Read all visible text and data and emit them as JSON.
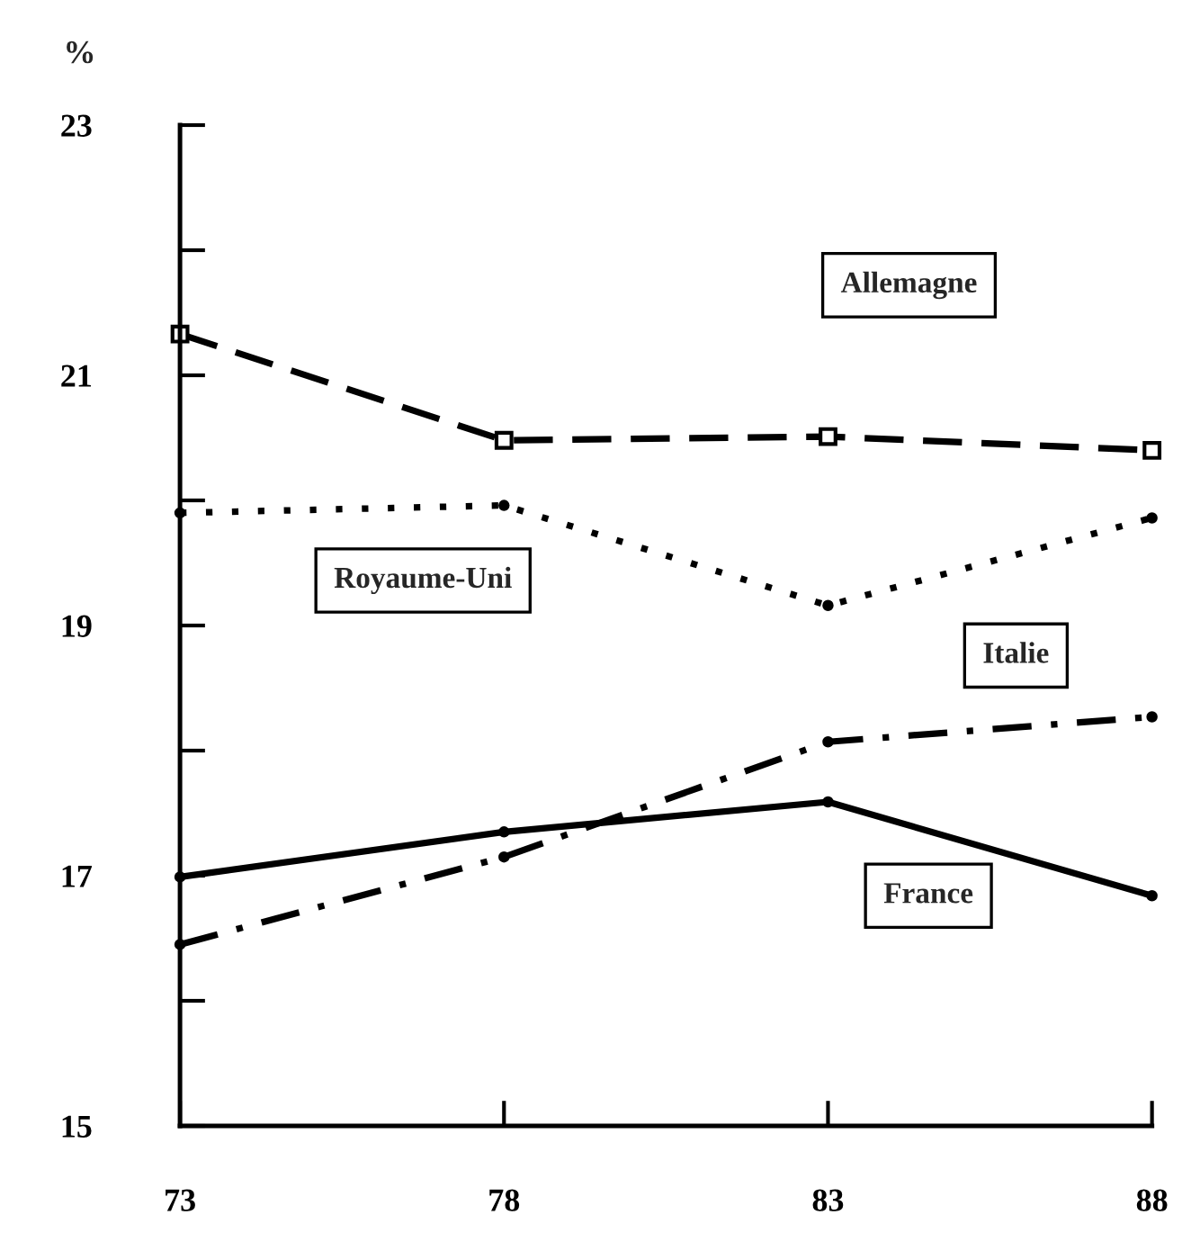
{
  "chart_data": {
    "type": "line",
    "ylabel": "%",
    "x": [
      73,
      78,
      83,
      88
    ],
    "xlim": [
      73,
      88
    ],
    "xticks": [
      73,
      78,
      83,
      88
    ],
    "ylim": [
      15,
      23
    ],
    "yticks": [
      15,
      {
        "value": 16,
        "label": null
      },
      17,
      {
        "value": 18,
        "label": null
      },
      19,
      {
        "value": 20,
        "label": null
      },
      21,
      {
        "value": 22,
        "label": null
      },
      23
    ],
    "grid": false,
    "legend": false,
    "series": [
      {
        "name": "Allemagne",
        "color": "#000000",
        "line_style": "dashed",
        "marker": "square",
        "values": [
          21.33,
          20.48,
          20.51,
          20.4
        ]
      },
      {
        "name": "Royaume-Uni",
        "color": "#000000",
        "line_style": "dotted",
        "marker": "circle",
        "values": [
          19.9,
          19.96,
          19.16,
          19.86
        ]
      },
      {
        "name": "Italie",
        "color": "#000000",
        "line_style": "dashdot",
        "marker": "circle",
        "values": [
          16.45,
          17.15,
          18.07,
          18.27
        ]
      },
      {
        "name": "France",
        "color": "#000000",
        "line_style": "solid",
        "marker": "circle",
        "values": [
          16.99,
          17.35,
          17.59,
          16.84
        ]
      }
    ]
  }
}
